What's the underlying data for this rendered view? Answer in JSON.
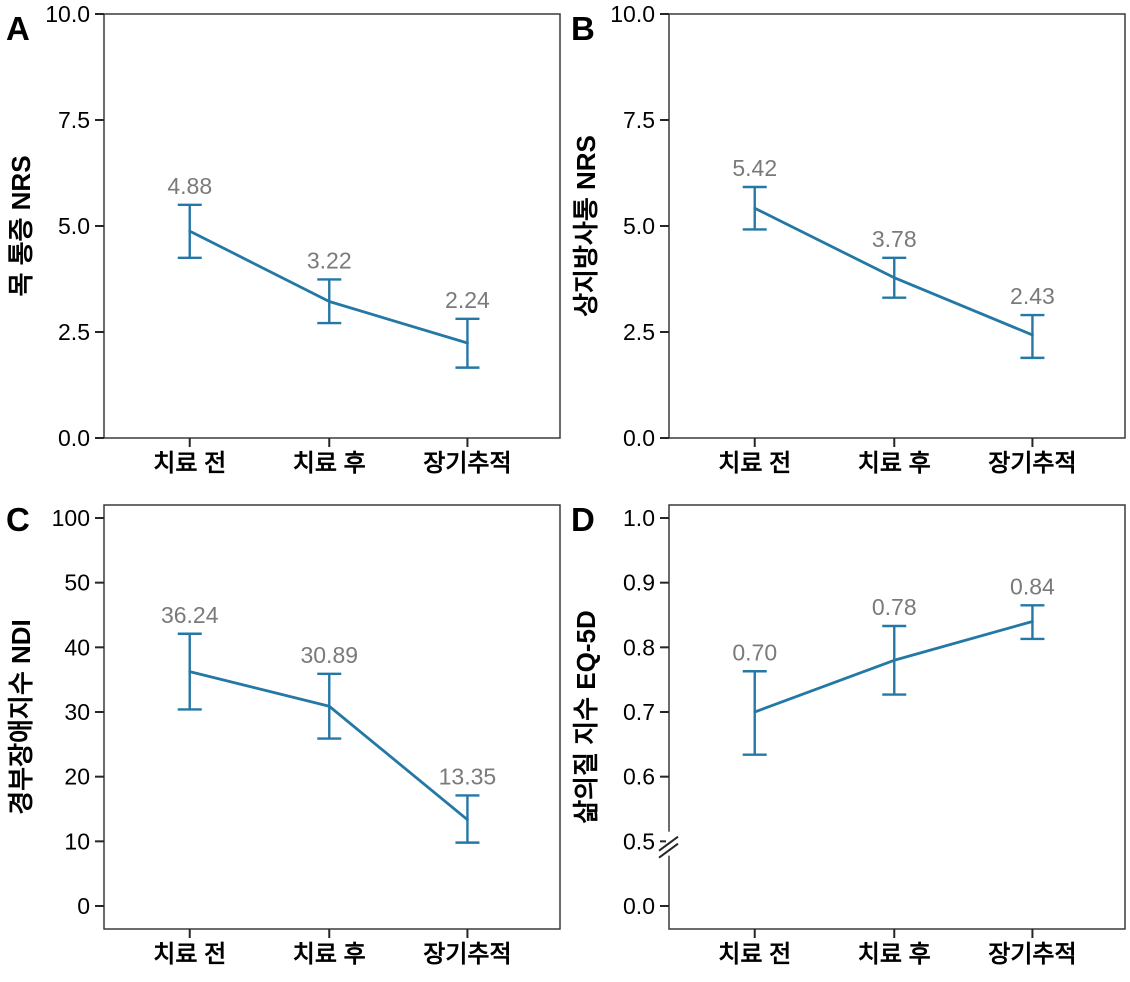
{
  "figure": {
    "background": "#ffffff",
    "accent_color": "#2478a6",
    "data_label_color": "#7a7a7a",
    "box_color": "#3a3a3a",
    "tick_color": "#262626",
    "text_color": "#000000"
  },
  "chart_data": [
    {
      "type": "line",
      "panel_label": "A",
      "ylabel": "목 통증 NRS",
      "categories": [
        "치료 전",
        "치료 후",
        "장기추적"
      ],
      "values": [
        4.88,
        3.22,
        2.24
      ],
      "value_labels": [
        "4.88",
        "3.22",
        "2.24"
      ],
      "error_upper": [
        5.5,
        3.74,
        2.81
      ],
      "error_lower": [
        4.25,
        2.71,
        1.66
      ],
      "yticks": [
        0,
        2.5,
        5,
        7.5,
        10
      ],
      "ytick_labels": [
        "0.0",
        "2.5",
        "5.0",
        "7.5",
        "10.0"
      ],
      "ylim": [
        0,
        10
      ],
      "scale": "linear",
      "tick_padding": false,
      "axis_break": false,
      "grid": false,
      "legend": "none"
    },
    {
      "type": "line",
      "panel_label": "B",
      "ylabel": "상지방사통 NRS",
      "categories": [
        "치료 전",
        "치료 후",
        "장기추적"
      ],
      "values": [
        5.42,
        3.78,
        2.43
      ],
      "value_labels": [
        "5.42",
        "3.78",
        "2.43"
      ],
      "error_upper": [
        5.92,
        4.25,
        2.9
      ],
      "error_lower": [
        4.92,
        3.31,
        1.89
      ],
      "yticks": [
        0,
        2.5,
        5,
        7.5,
        10
      ],
      "ytick_labels": [
        "0.0",
        "2.5",
        "5.0",
        "7.5",
        "10.0"
      ],
      "ylim": [
        0,
        10
      ],
      "scale": "linear",
      "tick_padding": false,
      "axis_break": false,
      "grid": false,
      "legend": "none"
    },
    {
      "type": "line",
      "panel_label": "C",
      "ylabel": "경부장애지수 NDI",
      "categories": [
        "치료 전",
        "치료 후",
        "장기추적"
      ],
      "values": [
        36.24,
        30.89,
        13.35
      ],
      "value_labels": [
        "36.24",
        "30.89",
        "13.35"
      ],
      "error_upper": [
        42.1,
        35.9,
        17.1
      ],
      "error_lower": [
        30.4,
        25.9,
        9.8
      ],
      "yticks": [
        0,
        10,
        20,
        30,
        40,
        50,
        100
      ],
      "ytick_labels": [
        "0",
        "10",
        "20",
        "30",
        "40",
        "50",
        "100"
      ],
      "ylim": [
        0,
        100
      ],
      "scale": "segmented-even-ticks",
      "tick_padding": true,
      "axis_break": false,
      "grid": false,
      "legend": "none"
    },
    {
      "type": "line",
      "panel_label": "D",
      "ylabel": "삶의질 지수 EQ-5D",
      "categories": [
        "치료 전",
        "치료 후",
        "장기추적"
      ],
      "values": [
        0.7,
        0.78,
        0.84
      ],
      "value_labels": [
        "0.70",
        "0.78",
        "0.84"
      ],
      "error_upper": [
        0.763,
        0.833,
        0.865
      ],
      "error_lower": [
        0.634,
        0.727,
        0.813
      ],
      "yticks": [
        0,
        0.5,
        0.6,
        0.7,
        0.8,
        0.9,
        1.0
      ],
      "ytick_labels": [
        "0.0",
        "0.5",
        "0.6",
        "0.7",
        "0.8",
        "0.9",
        "1.0"
      ],
      "ylim": [
        0,
        1.0
      ],
      "scale": "segmented-even-ticks",
      "tick_padding": true,
      "axis_break": true,
      "grid": false,
      "legend": "none"
    }
  ]
}
